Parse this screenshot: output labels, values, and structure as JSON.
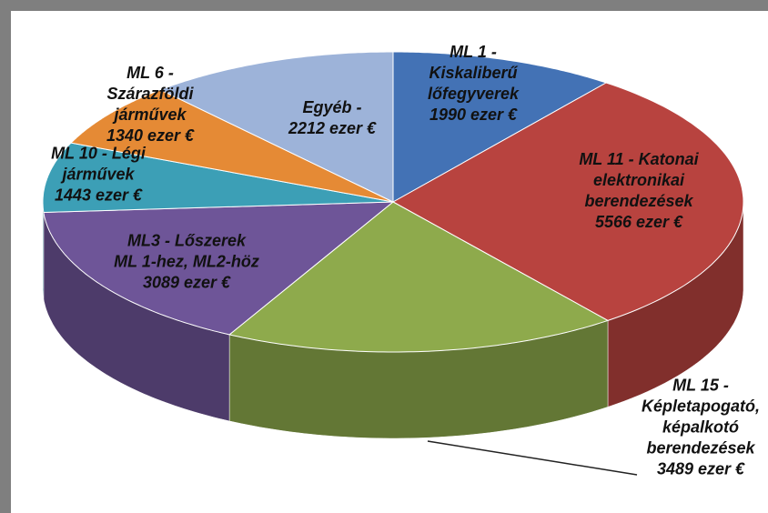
{
  "chart_data": {
    "type": "pie",
    "categories": [
      "ML 1 - Kiskaliberű lőfegyverek",
      "ML 11 - Katonai elektronikai berendezések",
      "ML 15 - Képletapogató, képalkotó berendezések",
      "ML3 - Lőszerek ML 1-hez, ML2-höz",
      "ML 10 - Légi járművek",
      "ML 6 - Szárazföldi járművek",
      "Egyéb -"
    ],
    "values": [
      1990,
      5566,
      3489,
      3089,
      1443,
      1340,
      2212
    ],
    "value_labels": [
      "1990 ezer €",
      "5566 ezer €",
      "3489 ezer €",
      "3089 ezer €",
      "1443 ezer €",
      "1340 ezer €",
      "2212 ezer €"
    ],
    "colors": [
      "#4372b5",
      "#b8433f",
      "#8eaa4c",
      "#6e5598",
      "#3c9fb6",
      "#e58a35",
      "#9db3d9"
    ]
  }
}
